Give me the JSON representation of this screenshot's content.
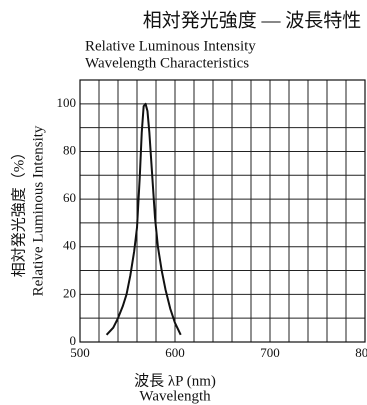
{
  "chart_data": {
    "type": "line",
    "title": "相対発光強度 — 波長特性",
    "subtitle": [
      "Relative Luminous Intensity",
      "Wavelength Characteristics"
    ],
    "x_label": [
      "波長 λP (nm)",
      "Wavelength"
    ],
    "y_label": [
      "相対発光強度（%）",
      "Relative Luminous Intensity"
    ],
    "x": [
      528,
      535,
      540,
      545,
      549,
      553,
      557,
      560,
      563,
      565,
      567,
      569,
      571,
      573,
      576,
      579,
      582,
      586,
      590,
      595,
      600,
      606
    ],
    "series": [
      {
        "name": "Relative Luminous Intensity",
        "color": "#111111",
        "values": [
          3,
          6,
          10,
          15,
          20,
          28,
          38,
          48,
          70,
          88,
          99,
          100,
          97,
          88,
          70,
          52,
          40,
          30,
          22,
          14,
          8,
          3
        ]
      }
    ],
    "xlim": [
      500,
      800
    ],
    "ylim": [
      0,
      110
    ],
    "xticks": [
      500,
      600,
      700,
      800
    ],
    "yticks": [
      0,
      20,
      40,
      60,
      80,
      100
    ],
    "x_minor_grid": [
      520,
      540,
      560,
      580,
      620,
      640,
      660,
      680,
      720,
      740,
      760,
      780
    ],
    "y_minor_grid": [
      10,
      30,
      50,
      70,
      90,
      110
    ],
    "grid": true
  }
}
